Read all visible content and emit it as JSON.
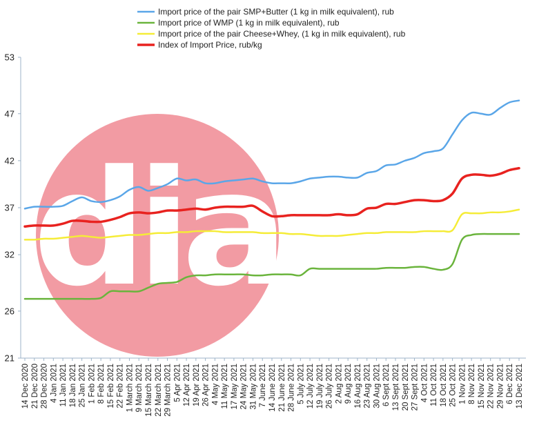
{
  "chart_data": {
    "type": "line",
    "ylim": [
      21,
      53
    ],
    "yticks": [
      21,
      26,
      32,
      37,
      42,
      47,
      53
    ],
    "x": [
      "14 Dec 2020",
      "21 Dec 2020",
      "28 Dec 2020",
      "4 Jan 2021",
      "11 Jan 2021",
      "18 Jan 2021",
      "25 Jan 2021",
      "1 Feb 2021",
      "8 Feb 2021",
      "15 Feb 2021",
      "22 Feb 2021",
      "1 March 2021",
      "9 March 2021",
      "15 March 2021",
      "22 March 2021",
      "29 March 2021",
      "5 Apr 2021",
      "12 Apr 2021",
      "19 Apr 2021",
      "26 Apr 2021",
      "4 May 2021",
      "11 May 2021",
      "17 May 2021",
      "24 May 2021",
      "31 May 2021",
      "7 June 2021",
      "14 June 2021",
      "21 June 2021",
      "28 June 2021",
      "5 July 2021",
      "12 July 2021",
      "19 July 2021",
      "26 July 2021",
      "2 Aug 2021",
      "9 Aug 2021",
      "16 Aug 2021",
      "23 Aug 2021",
      "30 Aug 2021",
      "6 Sept 2021",
      "13 Sept 2021",
      "20 Sept 2021",
      "27 Sept 2021",
      "4 Oct 2021",
      "11 Oct 2021",
      "18 Oct 2021",
      "25 Oct 2021",
      "1 Nov 2021",
      "8 Nov 2021",
      "15 Nov 2021",
      "22 Nov 2021",
      "29 Nov 2021",
      "6 Dec 2021",
      "13 Dec 2021"
    ],
    "legend_placement": "top",
    "grid": false,
    "series": [
      {
        "name": "Import price of the pair SMP+Butter (1 kg in milk equivalent), rub",
        "color": "#5aa6e8",
        "values": [
          36.9,
          37.1,
          37.1,
          37.1,
          37.2,
          37.7,
          38.1,
          37.7,
          37.6,
          37.8,
          38.2,
          38.9,
          39.2,
          38.8,
          39.1,
          39.5,
          40.1,
          39.9,
          40.0,
          39.6,
          39.6,
          39.8,
          39.9,
          40.0,
          40.1,
          39.8,
          39.6,
          39.6,
          39.6,
          39.8,
          40.1,
          40.2,
          40.3,
          40.3,
          40.2,
          40.2,
          40.7,
          40.9,
          41.5,
          41.6,
          42.0,
          42.3,
          42.8,
          43.0,
          43.3,
          44.8,
          46.3,
          47.1,
          47.0,
          46.9,
          47.6,
          48.2,
          48.4
        ]
      },
      {
        "name": "Import price of WMP (1 kg in milk equivalent), rub",
        "color": "#6ab43c",
        "values": [
          27.3,
          27.3,
          27.3,
          27.3,
          27.3,
          27.3,
          27.3,
          27.3,
          27.4,
          28.1,
          28.1,
          28.1,
          28.1,
          28.5,
          28.9,
          29.0,
          29.1,
          29.6,
          29.8,
          29.8,
          29.9,
          29.9,
          29.9,
          29.9,
          29.8,
          29.8,
          29.9,
          29.9,
          29.9,
          29.8,
          30.5,
          30.5,
          30.5,
          30.5,
          30.5,
          30.5,
          30.5,
          30.5,
          30.6,
          30.6,
          30.6,
          30.7,
          30.7,
          30.5,
          30.4,
          31.0,
          33.6,
          34.1,
          34.2,
          34.2,
          34.2,
          34.2,
          34.2
        ]
      },
      {
        "name": "Import price of the pair Cheese+Whey,  (1 kg in milk equivalent), rub",
        "color": "#f5ec37",
        "values": [
          33.6,
          33.6,
          33.7,
          33.7,
          33.8,
          33.9,
          34.0,
          33.9,
          33.8,
          33.9,
          34.0,
          34.1,
          34.1,
          34.2,
          34.3,
          34.3,
          34.4,
          34.4,
          34.5,
          34.5,
          34.5,
          34.4,
          34.4,
          34.4,
          34.4,
          34.3,
          34.3,
          34.3,
          34.2,
          34.2,
          34.1,
          34.0,
          34.0,
          34.0,
          34.1,
          34.2,
          34.3,
          34.3,
          34.4,
          34.4,
          34.4,
          34.4,
          34.5,
          34.5,
          34.5,
          34.6,
          36.3,
          36.4,
          36.4,
          36.5,
          36.5,
          36.6,
          36.8
        ]
      },
      {
        "name": "Index of Import Price, rub/kg",
        "color": "#e8221f",
        "values": [
          35.0,
          35.1,
          35.1,
          35.1,
          35.3,
          35.6,
          35.6,
          35.5,
          35.5,
          35.7,
          36.0,
          36.4,
          36.5,
          36.4,
          36.5,
          36.7,
          36.7,
          36.8,
          36.9,
          36.8,
          37.0,
          37.1,
          37.1,
          37.1,
          37.2,
          36.6,
          36.1,
          36.1,
          36.2,
          36.2,
          36.2,
          36.2,
          36.2,
          36.3,
          36.2,
          36.3,
          36.9,
          37.0,
          37.4,
          37.4,
          37.6,
          37.8,
          37.8,
          37.7,
          37.8,
          38.5,
          40.1,
          40.5,
          40.5,
          40.4,
          40.6,
          41.0,
          41.2
        ]
      }
    ]
  },
  "watermark": {
    "text": "dia",
    "color": "#f29ba3"
  }
}
